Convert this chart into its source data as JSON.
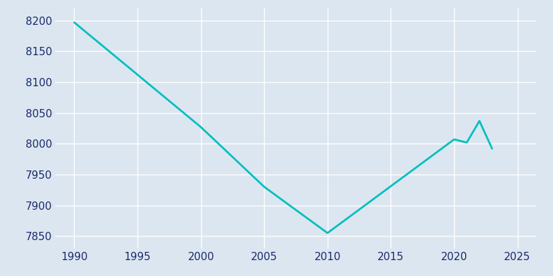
{
  "years": [
    1990,
    2000,
    2005,
    2010,
    2020,
    2021,
    2022,
    2023
  ],
  "population": [
    8197,
    8027,
    7930,
    7855,
    8007,
    8002,
    8037,
    7992
  ],
  "line_color": "#00BFBF",
  "background_color": "#dce6f0",
  "grid_color": "#FFFFFF",
  "tick_color": "#1a2a6c",
  "ylim": [
    7830,
    8220
  ],
  "xlim": [
    1988.5,
    2026.5
  ],
  "yticks": [
    7850,
    7900,
    7950,
    8000,
    8050,
    8100,
    8150,
    8200
  ],
  "xticks": [
    1990,
    1995,
    2000,
    2005,
    2010,
    2015,
    2020,
    2025
  ],
  "line_width": 2.0,
  "figsize": [
    8.0,
    4.0
  ],
  "dpi": 100
}
